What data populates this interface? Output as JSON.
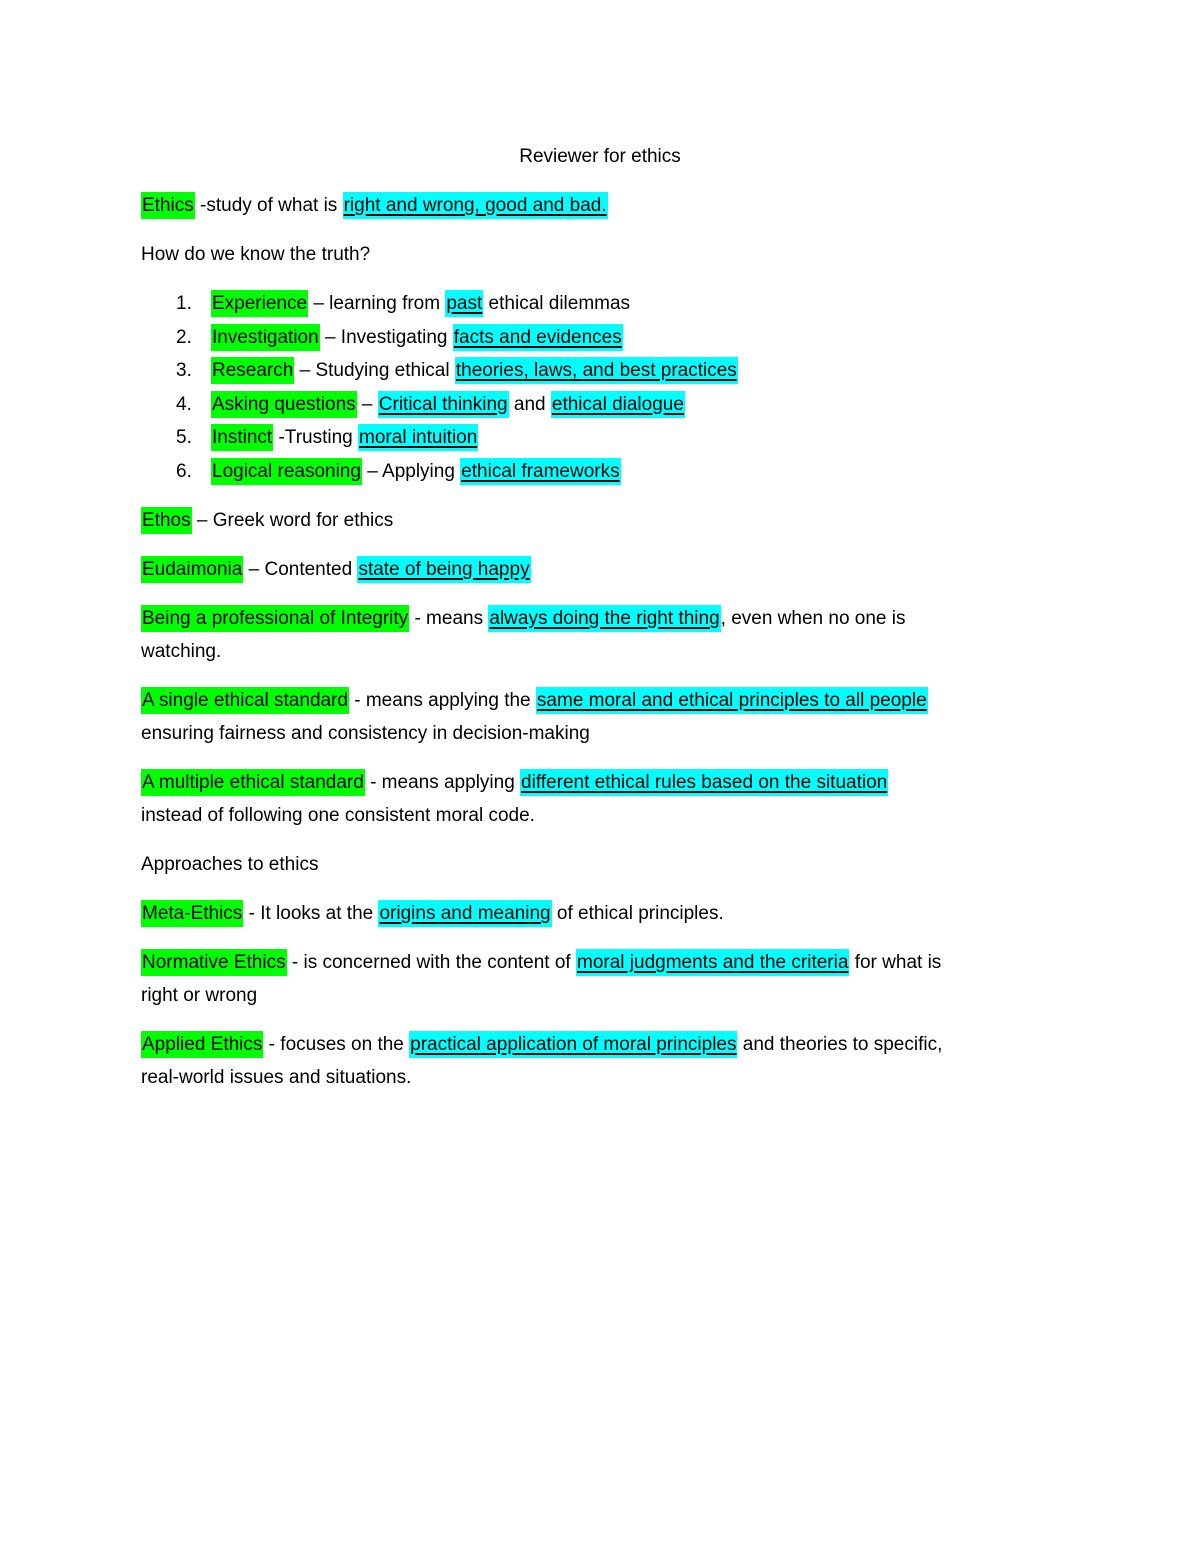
{
  "colors": {
    "term_highlight": "#00ff00",
    "key_phrase_highlight": "#00ffff"
  },
  "title": "Reviewer for ethics",
  "blocks": [
    {
      "type": "p",
      "segs": [
        {
          "t": "Ethics",
          "s": "g"
        },
        {
          "t": " -study of what is "
        },
        {
          "t": "right and wrong, good and bad.",
          "s": "c"
        }
      ]
    },
    {
      "type": "p",
      "segs": [
        {
          "t": "How do we know the truth?"
        }
      ]
    },
    {
      "type": "ol",
      "items": [
        {
          "num": "1.",
          "segs": [
            {
              "t": "Experience",
              "s": "g"
            },
            {
              "t": " – learning from "
            },
            {
              "t": "past",
              "s": "c"
            },
            {
              "t": " ethical dilemmas"
            }
          ]
        },
        {
          "num": "2.",
          "segs": [
            {
              "t": "Investigation",
              "s": "g"
            },
            {
              "t": " – Investigating "
            },
            {
              "t": "facts and evidences",
              "s": "c"
            }
          ]
        },
        {
          "num": "3.",
          "segs": [
            {
              "t": "Research",
              "s": "g"
            },
            {
              "t": " – Studying ethical "
            },
            {
              "t": "theories, laws, and best practices",
              "s": "c"
            }
          ]
        },
        {
          "num": "4.",
          "segs": [
            {
              "t": "Asking questions",
              "s": "g"
            },
            {
              "t": " – "
            },
            {
              "t": "Critical thinking",
              "s": "c"
            },
            {
              "t": " and "
            },
            {
              "t": "ethical dialogue",
              "s": "c"
            }
          ]
        },
        {
          "num": "5.",
          "segs": [
            {
              "t": "Instinct",
              "s": "g"
            },
            {
              "t": " -Trusting "
            },
            {
              "t": "moral intuition",
              "s": "c"
            }
          ]
        },
        {
          "num": "6.",
          "segs": [
            {
              "t": "Logical reasoning",
              "s": "g"
            },
            {
              "t": " – Applying "
            },
            {
              "t": "ethical frameworks",
              "s": "c"
            }
          ]
        }
      ]
    },
    {
      "type": "p",
      "segs": [
        {
          "t": "Ethos",
          "s": "g"
        },
        {
          "t": " – Greek word for ethics"
        }
      ]
    },
    {
      "type": "p",
      "segs": [
        {
          "t": "Eudaimonia",
          "s": "g"
        },
        {
          "t": " – Contented "
        },
        {
          "t": "state of being happy",
          "s": "c"
        }
      ]
    },
    {
      "type": "p",
      "segs": [
        {
          "t": "Being a professional of Integrity",
          "s": "g"
        },
        {
          "t": " - means "
        },
        {
          "t": "always doing the right thing",
          "s": "c"
        },
        {
          "t": ", even when no one is"
        },
        {
          "br": true
        },
        {
          "t": "watching."
        }
      ]
    },
    {
      "type": "p",
      "segs": [
        {
          "t": "A single ethical standard",
          "s": "g"
        },
        {
          "t": " - means applying the "
        },
        {
          "t": "same moral and ethical principles to all people",
          "s": "c"
        },
        {
          "br": true
        },
        {
          "t": "ensuring fairness and consistency in decision-making"
        }
      ]
    },
    {
      "type": "p",
      "segs": [
        {
          "t": "A multiple ethical standard",
          "s": "g"
        },
        {
          "t": " - means applying "
        },
        {
          "t": "different ethical rules based on the situation",
          "s": "c"
        },
        {
          "br": true
        },
        {
          "t": "instead of following one consistent moral code."
        }
      ]
    },
    {
      "type": "p",
      "segs": [
        {
          "t": "Approaches to ethics"
        }
      ]
    },
    {
      "type": "p",
      "segs": [
        {
          "t": "Meta-Ethics",
          "s": "g"
        },
        {
          "t": " - It looks at the "
        },
        {
          "t": "origins and meaning",
          "s": "c"
        },
        {
          "t": " of ethical principles."
        }
      ]
    },
    {
      "type": "p",
      "segs": [
        {
          "t": "Normative Ethics",
          "s": "g"
        },
        {
          "t": " - is concerned with the content of "
        },
        {
          "t": "moral judgments and the criteria",
          "s": "c"
        },
        {
          "t": " for what is"
        },
        {
          "br": true
        },
        {
          "t": "right or wrong"
        }
      ]
    },
    {
      "type": "p",
      "segs": [
        {
          "t": "Applied Ethics",
          "s": "g"
        },
        {
          "t": " - focuses on the "
        },
        {
          "t": "practical application of moral principles",
          "s": "c"
        },
        {
          "t": " and theories to specific,"
        },
        {
          "br": true
        },
        {
          "t": "real-world issues and situations."
        }
      ]
    }
  ]
}
